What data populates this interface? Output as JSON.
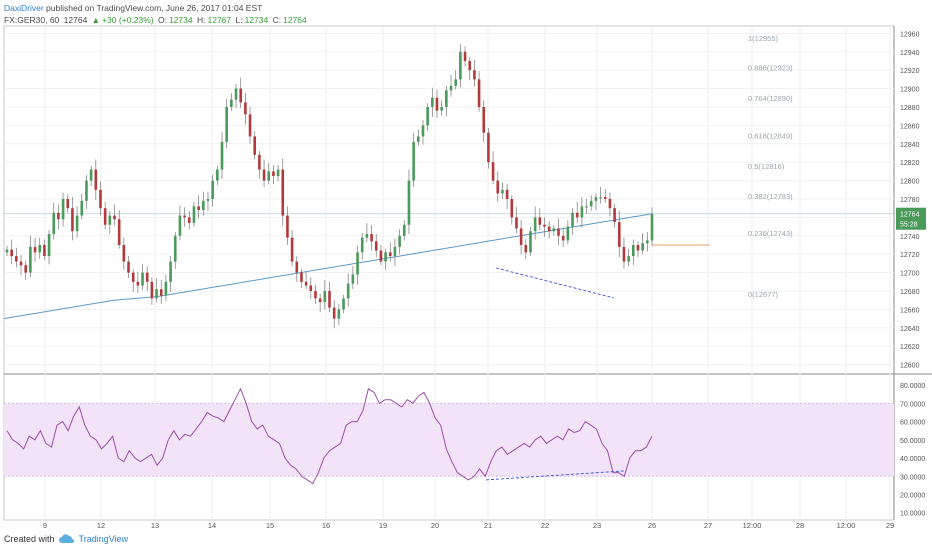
{
  "header": {
    "author": "DaxiDriver",
    "published": "published on TradingView.com, June 26, 2017 01:04 EST",
    "symbol": "FX:GER30, 60",
    "last": "12764",
    "arrow": "▲",
    "change": "+30 (+0.23%)",
    "o_label": "O:",
    "o": "12734",
    "h_label": "H:",
    "h": "12767",
    "l_label": "L:",
    "l": "12734",
    "c_label": "C:",
    "c": "12764"
  },
  "footer": {
    "created_with": "Created with",
    "brand": "TradingView"
  },
  "price_badge": {
    "price": "12764",
    "timer": "55:28"
  },
  "fib_levels": [
    {
      "label": "1(12955)",
      "value": 12955
    },
    {
      "label": "0.886(12923)",
      "value": 12923
    },
    {
      "label": "0.764(12890)",
      "value": 12890
    },
    {
      "label": "0.618(12849)",
      "value": 12849
    },
    {
      "label": "0.5(12816)",
      "value": 12816
    },
    {
      "label": "0.382(12783)",
      "value": 12783
    },
    {
      "label": "0.236(12743)",
      "value": 12743
    },
    {
      "label": "0(12677)",
      "value": 12677
    }
  ],
  "chart_data": [
    {
      "type": "candlestick",
      "title": "FX:GER30, 60",
      "y_ticks": [
        "12600",
        "12620",
        "12640",
        "12660",
        "12680",
        "12700",
        "12720",
        "12740",
        "12760",
        "12780",
        "12800",
        "12820",
        "12840",
        "12860",
        "12880",
        "12900",
        "12920",
        "12940",
        "12960"
      ],
      "ylim": [
        12592,
        12968
      ],
      "x_ticks": [
        "9",
        "12",
        "13",
        "14",
        "15",
        "16",
        "19",
        "20",
        "21",
        "22",
        "23",
        "26",
        "27",
        "12:00",
        "28",
        "12:00",
        "29"
      ],
      "last_price": 12764,
      "closes": [
        12725,
        12718,
        12712,
        12708,
        12700,
        12728,
        12722,
        12730,
        12718,
        12742,
        12765,
        12758,
        12780,
        12770,
        12745,
        12762,
        12778,
        12800,
        12812,
        12790,
        12770,
        12752,
        12762,
        12758,
        12730,
        12712,
        12700,
        12690,
        12686,
        12700,
        12690,
        12672,
        12682,
        12675,
        12690,
        12712,
        12740,
        12762,
        12760,
        12754,
        12772,
        12768,
        12778,
        12780,
        12800,
        12812,
        12842,
        12880,
        12888,
        12900,
        12885,
        12872,
        12848,
        12828,
        12812,
        12800,
        12810,
        12805,
        12812,
        12762,
        12738,
        12712,
        12700,
        12690,
        12686,
        12680,
        12672,
        12668,
        12680,
        12662,
        12650,
        12660,
        12672,
        12688,
        12698,
        12722,
        12738,
        12742,
        12734,
        12724,
        12712,
        12722,
        12718,
        12728,
        12740,
        12752,
        12800,
        12842,
        12848,
        12860,
        12880,
        12890,
        12876,
        12880,
        12898,
        12903,
        12910,
        12940,
        12930,
        12920,
        12910,
        12880,
        12852,
        12820,
        12800,
        12786,
        12790,
        12780,
        12760,
        12748,
        12730,
        12722,
        12745,
        12760,
        12752,
        12750,
        12745,
        12748,
        12740,
        12735,
        12750,
        12765,
        12760,
        12772,
        12772,
        12778,
        12782,
        12782,
        12780,
        12770,
        12755,
        12728,
        12712,
        12718,
        12730,
        12724,
        12732,
        12735,
        12764
      ],
      "ma": [
        12650,
        12652,
        12654,
        12656,
        12658,
        12660,
        12662,
        12664,
        12666,
        12668,
        12670,
        12671,
        12672,
        12673,
        12674,
        12676,
        12678,
        12680,
        12682,
        12684,
        12686,
        12688,
        12690,
        12692,
        12694,
        12696,
        12698,
        12700,
        12702,
        12704,
        12706,
        12708,
        12710,
        12712,
        12714,
        12716,
        12718,
        12720,
        12722,
        12724,
        12726,
        12728,
        12730,
        12732,
        12734,
        12736,
        12738,
        12740,
        12742,
        12744,
        12746,
        12748,
        12750,
        12752,
        12754,
        12756,
        12758,
        12760,
        12762,
        12764
      ],
      "ma_color": "#5b9bc8"
    },
    {
      "type": "line",
      "title": "RSI",
      "y_ticks": [
        "10.0000",
        "20.0000",
        "30.0000",
        "40.0000",
        "50.0000",
        "60.0000",
        "70.0000",
        "80.0000"
      ],
      "ylim": [
        6,
        85
      ],
      "band": [
        30,
        70
      ],
      "values": [
        55,
        50,
        48,
        45,
        52,
        50,
        55,
        48,
        46,
        58,
        60,
        55,
        63,
        68,
        58,
        52,
        50,
        45,
        48,
        52,
        40,
        38,
        44,
        40,
        38,
        40,
        42,
        36,
        40,
        50,
        55,
        50,
        53,
        52,
        56,
        60,
        65,
        63,
        62,
        60,
        66,
        72,
        78,
        70,
        60,
        56,
        58,
        52,
        50,
        48,
        40,
        36,
        34,
        30,
        28,
        26,
        32,
        40,
        44,
        46,
        48,
        58,
        60,
        60,
        66,
        78,
        76,
        70,
        72,
        72,
        70,
        68,
        72,
        70,
        74,
        76,
        70,
        62,
        58,
        45,
        38,
        32,
        30,
        28,
        30,
        34,
        30,
        38,
        44,
        46,
        42,
        44,
        46,
        48,
        46,
        50,
        52,
        48,
        50,
        52,
        50,
        56,
        54,
        55,
        60,
        58,
        56,
        48,
        44,
        32,
        32,
        30,
        40,
        44,
        44,
        46,
        52
      ]
    }
  ],
  "colors": {
    "bull": "#4a9a5a",
    "bear": "#b33a3a",
    "rsi_line": "#9b4fa8",
    "rsi_band": "#f3e3f9",
    "divergence": "#3b4fd4",
    "fib": "#9aa5ad",
    "orange": "#f0a060"
  }
}
